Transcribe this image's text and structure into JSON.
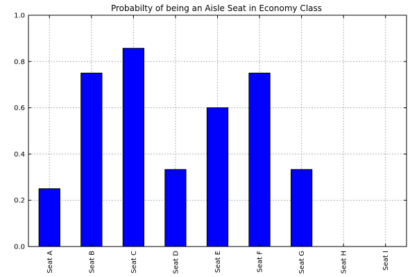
{
  "chart_data": {
    "type": "bar",
    "title": "Probabilty of being an Aisle Seat in Economy Class",
    "xlabel": "",
    "ylabel": "",
    "categories": [
      "Seat A",
      "Seat B",
      "Seat C",
      "Seat D",
      "Seat E",
      "Seat F",
      "Seat G",
      "Seat H",
      "Seat I"
    ],
    "values": [
      0.25,
      0.75,
      0.857,
      0.333,
      0.6,
      0.75,
      0.333,
      0.0,
      0.0
    ],
    "ylim": [
      0.0,
      1.0
    ],
    "yticks": [
      "0.0",
      "0.2",
      "0.4",
      "0.6",
      "0.8",
      "1.0"
    ],
    "grid": true,
    "legend": "none",
    "bar_color": "#0000ff",
    "edge_color": "#000000"
  }
}
